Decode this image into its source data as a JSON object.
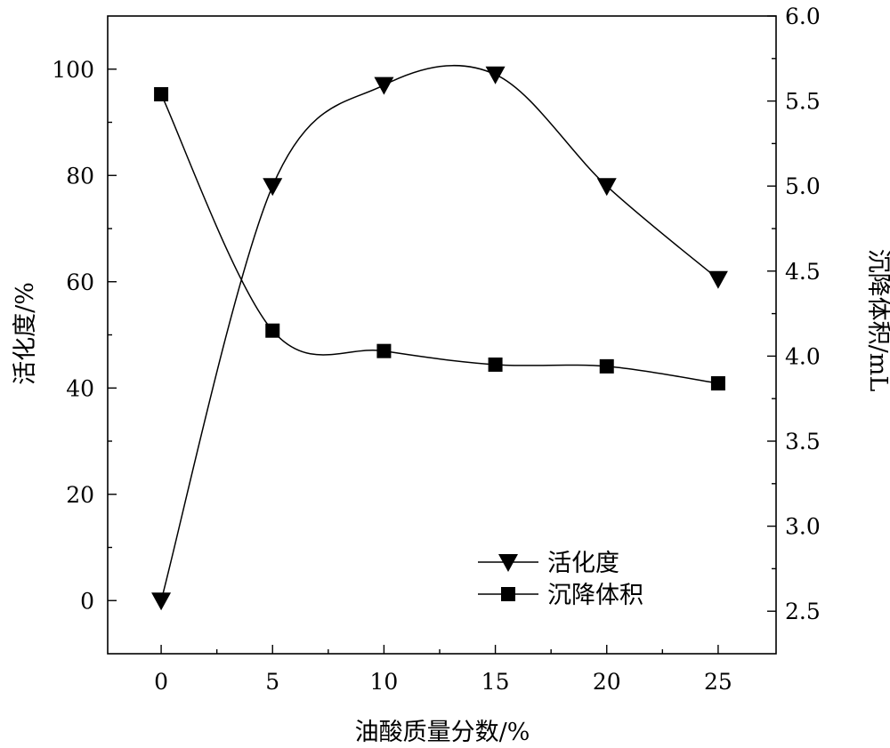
{
  "chart_data": {
    "type": "line",
    "xlabel": "油酸质量分数/%",
    "x": [
      0,
      5,
      10,
      15,
      20,
      25
    ],
    "xlim": [
      -2.4,
      27.6
    ],
    "x_ticks": [
      "0",
      "5",
      "10",
      "15",
      "20",
      "25"
    ],
    "y_left": {
      "label": "活化度/%",
      "lim": [
        -10,
        110
      ],
      "ticks": [
        "0",
        "20",
        "40",
        "60",
        "80",
        "100"
      ]
    },
    "y_right": {
      "label": "沉降体积/mL",
      "lim": [
        2.25,
        6.0
      ],
      "ticks": [
        "2.5",
        "3.0",
        "3.5",
        "4.0",
        "4.5",
        "5.0",
        "5.5",
        "6.0"
      ]
    },
    "series": [
      {
        "name": "活化度",
        "axis": "left",
        "marker": "triangle-down",
        "values": [
          0,
          78,
          97,
          99,
          78,
          60.5
        ]
      },
      {
        "name": "沉降体积",
        "axis": "right",
        "marker": "square",
        "values": [
          5.54,
          4.15,
          4.03,
          3.95,
          3.94,
          3.84
        ]
      }
    ],
    "legend_position": "bottom-right",
    "grid": false,
    "color": "#000000"
  }
}
